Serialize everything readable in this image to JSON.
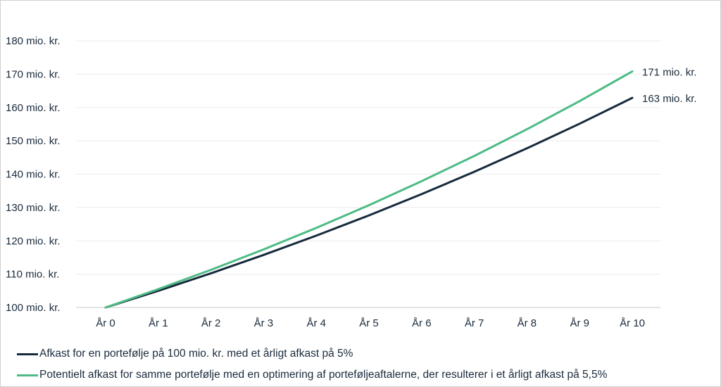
{
  "chart_data": {
    "type": "line",
    "categories": [
      "År 0",
      "År 1",
      "År 2",
      "År 3",
      "År 4",
      "År 5",
      "År 6",
      "År 7",
      "År 8",
      "År 9",
      "År 10"
    ],
    "series": [
      {
        "name": "Afkast for en portefølje på 100 mio. kr. med et årligt afkast på 5%",
        "values": [
          100,
          105,
          110.25,
          115.76,
          121.55,
          127.63,
          134.01,
          140.71,
          147.75,
          155.13,
          162.89
        ],
        "color": "#152a3d",
        "end_label": "163  mio. kr."
      },
      {
        "name": "Potentielt afkast for samme portefølje med en optimering af porteføljeaftalerne, der resulterer i et årligt afkast på 5,5%",
        "values": [
          100,
          105.5,
          111.3,
          117.42,
          123.88,
          130.7,
          137.88,
          145.47,
          153.47,
          161.91,
          170.81
        ],
        "color": "#4dbb84",
        "end_label": "171  mio. kr."
      }
    ],
    "y_ticks": [
      "100  mio. kr.",
      "110  mio. kr.",
      "120  mio. kr.",
      "130  mio. kr.",
      "140  mio. kr.",
      "150  mio. kr.",
      "160  mio. kr.",
      "170  mio. kr.",
      "180  mio. kr."
    ],
    "ylim": [
      100,
      180
    ],
    "grid": true,
    "legend_position": "bottom-left"
  }
}
